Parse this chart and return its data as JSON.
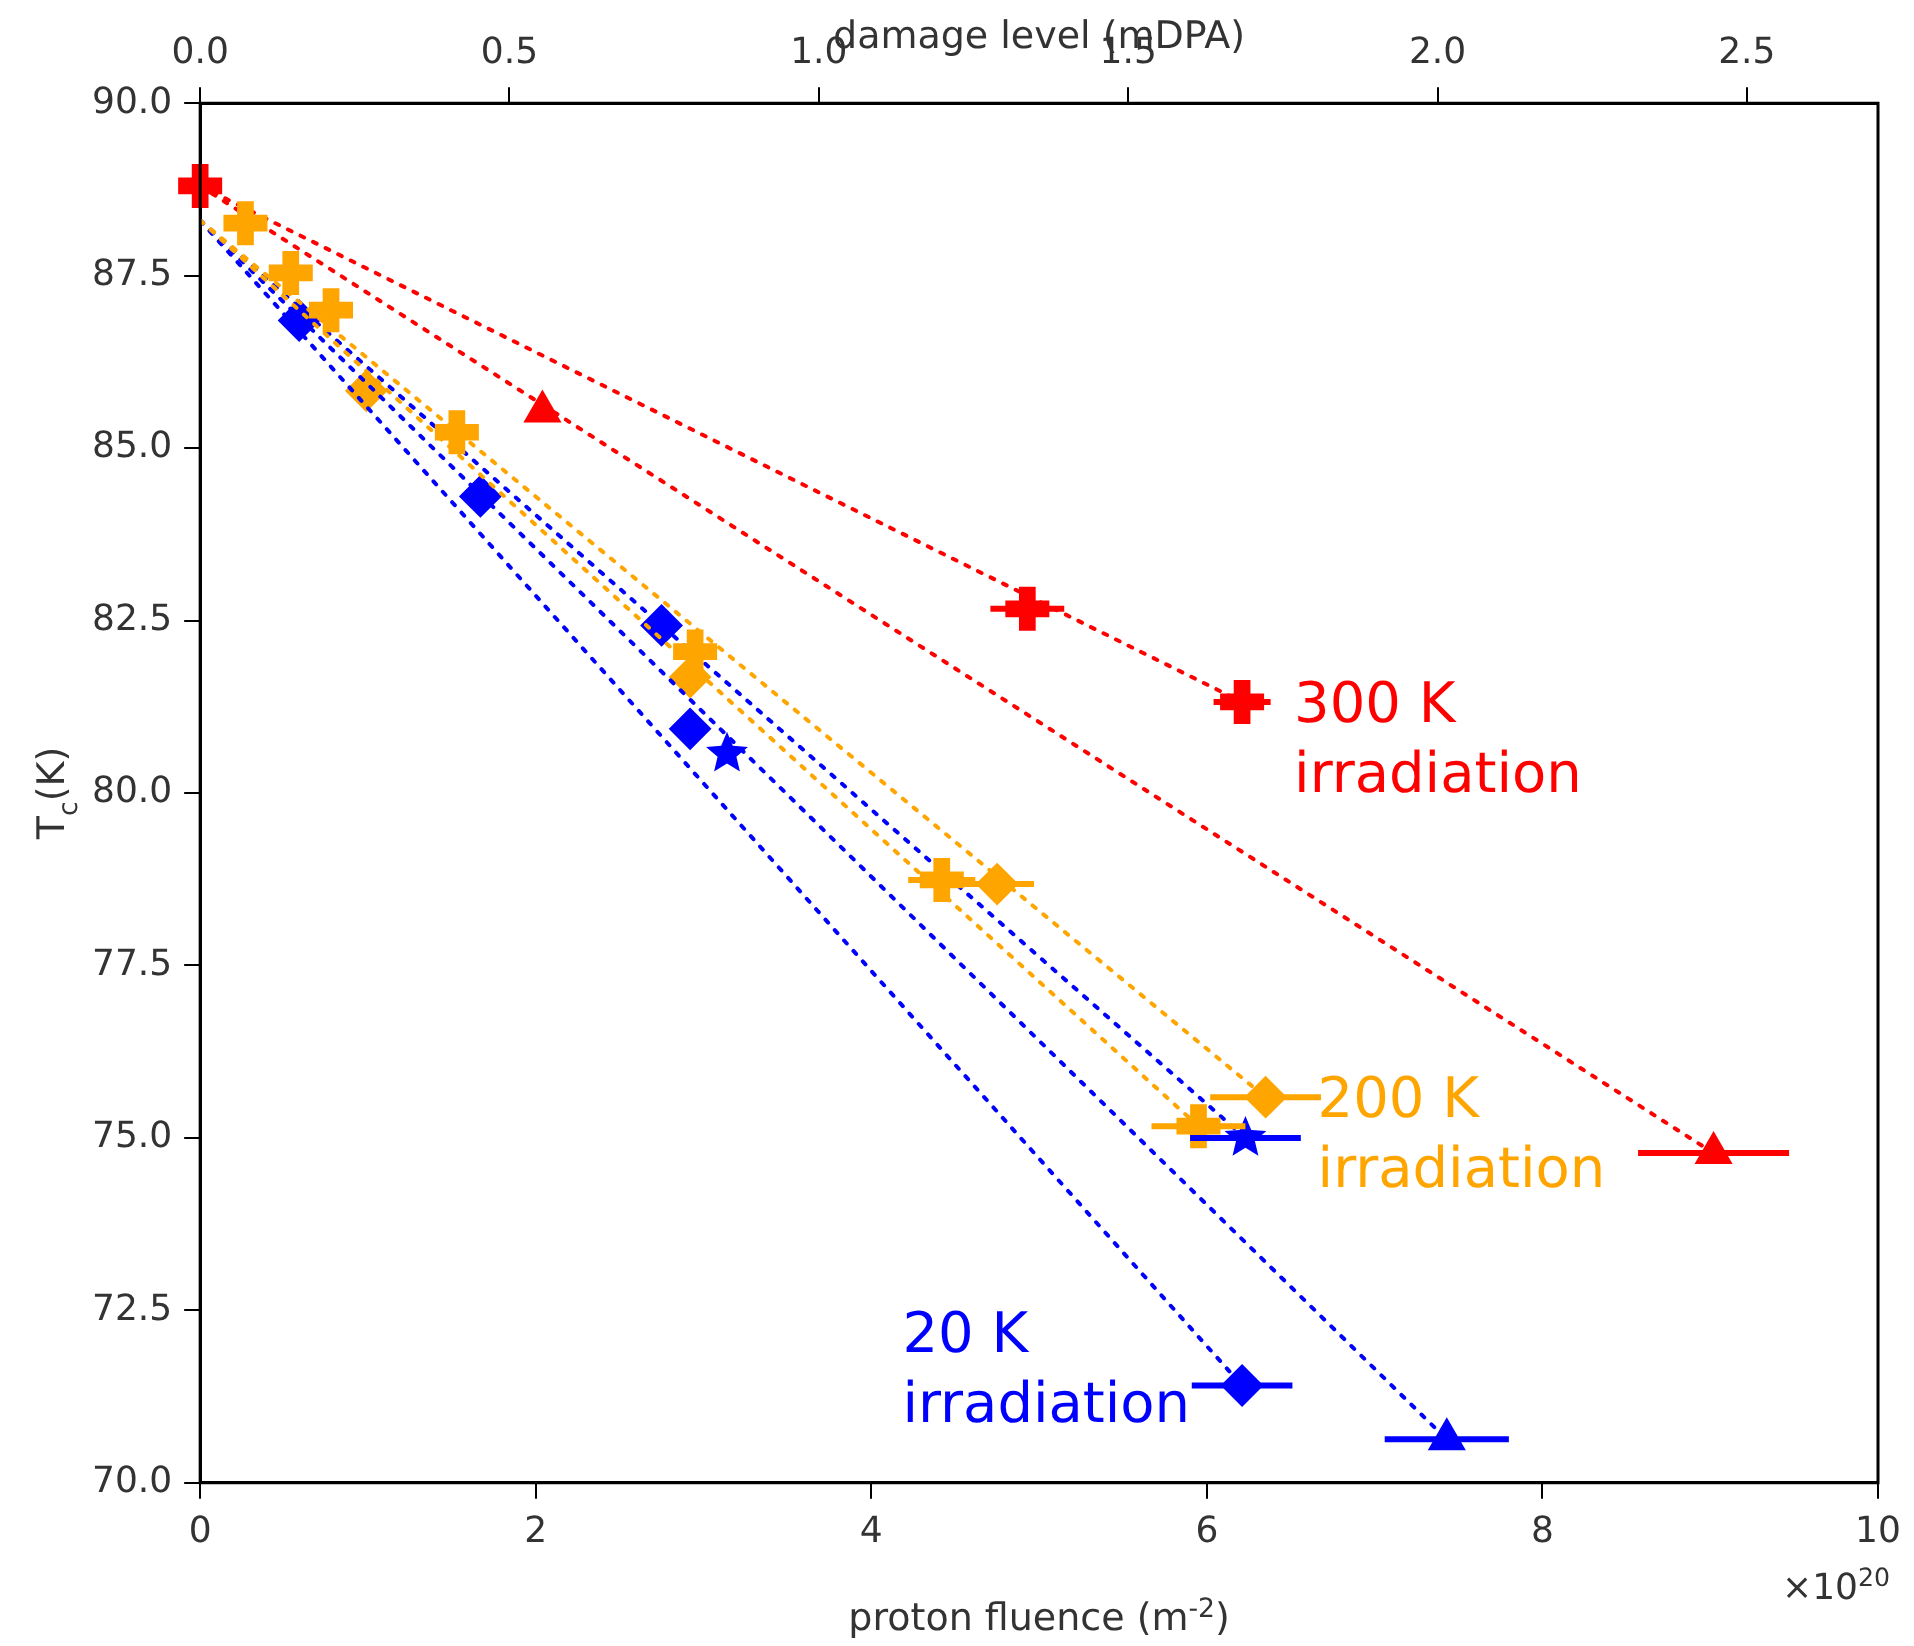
{
  "chart_data": {
    "type": "scatter",
    "xlabel": "proton fluence (m$^{-2}$)",
    "ylabel": "T$_{c}$(K)",
    "x2label": "damage level (mDPA)",
    "xlim": [
      0,
      10
    ],
    "xticks": [
      0,
      2,
      4,
      6,
      8,
      10
    ],
    "x2lim": [
      0,
      2.712
    ],
    "x2ticks": [
      {
        "value": 0,
        "label": "0.0"
      },
      {
        "value": 0.5,
        "label": "0.5"
      },
      {
        "value": 1,
        "label": "1.0"
      },
      {
        "value": 1.5,
        "label": "1.5"
      },
      {
        "value": 2,
        "label": "2.0"
      },
      {
        "value": 2.5,
        "label": "2.5"
      }
    ],
    "ylim": [
      70,
      90
    ],
    "yticks": [
      {
        "value": 70,
        "label": "70.0"
      },
      {
        "value": 72.5,
        "label": "72.5"
      },
      {
        "value": 75,
        "label": "75.0"
      },
      {
        "value": 77.5,
        "label": "77.5"
      },
      {
        "value": 80,
        "label": "80.0"
      },
      {
        "value": 82.5,
        "label": "82.5"
      },
      {
        "value": 85,
        "label": "85.0"
      },
      {
        "value": 87.5,
        "label": "87.5"
      },
      {
        "value": 90,
        "label": "90.0"
      }
    ],
    "grid": false,
    "legend": false,
    "line_style": "dotted",
    "annotations": [
      "×10$^{20}$"
    ],
    "series": [
      {
        "type": "line",
        "color": "#ff0000",
        "x": [
          0,
          6.21
        ],
        "values": [
          88.8,
          81.32
        ]
      },
      {
        "type": "line",
        "color": "#ff0000",
        "x": [
          0,
          9.02
        ],
        "values": [
          88.8,
          74.78
        ]
      },
      {
        "type": "line",
        "color": "#ffa500",
        "x": [
          0,
          5.95
        ],
        "values": [
          88.3,
          75.17
        ]
      },
      {
        "type": "line",
        "color": "#ffa500",
        "x": [
          0,
          6.35
        ],
        "values": [
          88.3,
          75.59
        ]
      },
      {
        "type": "line",
        "color": "#0000ff",
        "x": [
          0,
          6.21
        ],
        "values": [
          88.3,
          71.41
        ]
      },
      {
        "type": "line",
        "color": "#0000ff",
        "x": [
          0,
          6.23
        ],
        "values": [
          88.3,
          75.0
        ]
      },
      {
        "type": "line",
        "color": "#0000ff",
        "x": [
          0,
          7.43
        ],
        "values": [
          88.3,
          70.63
        ]
      },
      {
        "name": "300 K irradiation",
        "color": "#ff0000",
        "marker": "cross",
        "x": [
          0,
          4.93,
          6.21
        ],
        "values": [
          88.8,
          82.67,
          81.32
        ],
        "xerrors": [
          null,
          0.22,
          0.17
        ]
      },
      {
        "color": "#ff0000",
        "marker": "triangle",
        "x": [
          2.04,
          9.02
        ],
        "values": [
          85.53,
          74.78
        ],
        "xerrors": [
          null,
          0.45
        ]
      },
      {
        "color": "#ffa500",
        "marker": "cross",
        "x": [
          0.27,
          0.54,
          0.78,
          1.53,
          2.95,
          4.42,
          5.95
        ],
        "values": [
          88.26,
          87.54,
          87.0,
          85.23,
          82.05,
          78.74,
          75.17
        ],
        "xerrors": [
          null,
          null,
          null,
          null,
          null,
          0.2,
          0.28
        ]
      },
      {
        "name": "200 K irradiation",
        "color": "#ffa500",
        "marker": "diamond",
        "x": [
          0.99,
          2.92,
          4.75,
          6.35
        ],
        "values": [
          85.83,
          81.68,
          78.68,
          75.59
        ],
        "xerrors": [
          null,
          null,
          0.22,
          0.33
        ]
      },
      {
        "name": "20 K irradiation",
        "color": "#0000ff",
        "marker": "diamond",
        "x": [
          0.59,
          1.67,
          2.75,
          2.92,
          6.21
        ],
        "values": [
          86.85,
          84.3,
          82.43,
          80.93,
          71.41
        ],
        "xerrors": [
          null,
          null,
          null,
          null,
          0.3
        ]
      },
      {
        "color": "#0000ff",
        "marker": "star",
        "x": [
          3.14,
          6.23
        ],
        "values": [
          80.57,
          75.0
        ],
        "xerrors": [
          null,
          0.33
        ]
      },
      {
        "color": "#0000ff",
        "marker": "triangle",
        "x": [
          7.43
        ],
        "values": [
          70.63
        ],
        "xerrors": [
          0.37
        ]
      }
    ]
  }
}
